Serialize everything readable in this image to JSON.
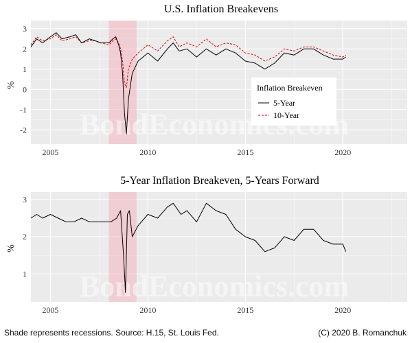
{
  "chart_data": [
    {
      "type": "line",
      "title": "U.S. Inflation Breakevens",
      "xlabel": "",
      "ylabel": "%",
      "xlim": [
        2004.0,
        2023.3
      ],
      "ylim": [
        -2.7,
        3.4
      ],
      "yticks": [
        3,
        2,
        1,
        0,
        -1,
        -2
      ],
      "xticks": [
        2005,
        2010,
        2015,
        2020
      ],
      "grid": true,
      "recession": [
        2008.0,
        2009.42
      ],
      "legend": {
        "title": "Inflation Breakeven",
        "placement": "center-right"
      },
      "series": [
        {
          "name": "5-Year",
          "color": "#000000",
          "x": [
            2004.0,
            2004.3,
            2004.6,
            2005.0,
            2005.3,
            2005.6,
            2006.0,
            2006.3,
            2006.6,
            2007.0,
            2007.3,
            2007.6,
            2008.0,
            2008.2,
            2008.35,
            2008.5,
            2008.6,
            2008.7,
            2008.8,
            2008.9,
            2009.0,
            2009.2,
            2009.5,
            2010.0,
            2010.5,
            2011.0,
            2011.3,
            2011.6,
            2012.0,
            2012.5,
            2013.0,
            2013.5,
            2014.0,
            2014.5,
            2015.0,
            2015.5,
            2016.0,
            2016.5,
            2017.0,
            2017.5,
            2018.0,
            2018.5,
            2019.0,
            2019.5,
            2020.0,
            2020.15
          ],
          "values": [
            2.1,
            2.5,
            2.3,
            2.6,
            2.8,
            2.5,
            2.6,
            2.7,
            2.3,
            2.5,
            2.4,
            2.3,
            2.3,
            2.5,
            2.6,
            2.2,
            1.8,
            0.8,
            -1.2,
            -2.2,
            -0.5,
            0.8,
            1.4,
            1.8,
            1.4,
            2.0,
            2.3,
            1.9,
            2.0,
            1.6,
            2.0,
            1.7,
            2.0,
            1.8,
            1.4,
            1.3,
            1.0,
            1.3,
            1.8,
            1.7,
            2.0,
            2.0,
            1.7,
            1.5,
            1.5,
            1.6
          ]
        },
        {
          "name": "10-Year",
          "color": "#e00000",
          "x": [
            2004.0,
            2004.3,
            2004.6,
            2005.0,
            2005.3,
            2005.6,
            2006.0,
            2006.3,
            2006.6,
            2007.0,
            2007.3,
            2007.6,
            2008.0,
            2008.2,
            2008.35,
            2008.5,
            2008.6,
            2008.7,
            2008.8,
            2008.9,
            2009.0,
            2009.2,
            2009.5,
            2010.0,
            2010.5,
            2011.0,
            2011.3,
            2011.6,
            2012.0,
            2012.5,
            2013.0,
            2013.5,
            2014.0,
            2014.5,
            2015.0,
            2015.5,
            2016.0,
            2016.5,
            2017.0,
            2017.5,
            2018.0,
            2018.5,
            2019.0,
            2019.5,
            2020.0,
            2020.15
          ],
          "values": [
            2.2,
            2.6,
            2.4,
            2.5,
            2.7,
            2.4,
            2.5,
            2.6,
            2.3,
            2.4,
            2.4,
            2.3,
            2.2,
            2.4,
            2.5,
            2.3,
            2.0,
            1.4,
            0.3,
            0.1,
            1.0,
            1.5,
            1.8,
            2.2,
            1.9,
            2.4,
            2.6,
            2.1,
            2.3,
            2.1,
            2.5,
            2.1,
            2.3,
            2.2,
            1.8,
            1.7,
            1.4,
            1.6,
            2.0,
            1.9,
            2.1,
            2.1,
            1.9,
            1.7,
            1.6,
            1.7
          ]
        }
      ]
    },
    {
      "type": "line",
      "title": "5-Year Inflation Breakeven, 5-Years Forward",
      "xlabel": "",
      "ylabel": "%",
      "xlim": [
        2004.0,
        2023.3
      ],
      "ylim": [
        0.25,
        3.2
      ],
      "yticks": [
        3,
        2,
        1
      ],
      "xticks": [
        2005,
        2010,
        2015,
        2020
      ],
      "grid": true,
      "recession": [
        2008.0,
        2009.42
      ],
      "series": [
        {
          "name": "",
          "color": "#000000",
          "x": [
            2004.0,
            2004.3,
            2004.6,
            2005.0,
            2005.4,
            2005.8,
            2006.2,
            2006.6,
            2007.0,
            2007.4,
            2007.8,
            2008.1,
            2008.4,
            2008.6,
            2008.75,
            2008.85,
            2008.95,
            2009.05,
            2009.2,
            2009.5,
            2010.0,
            2010.5,
            2011.0,
            2011.3,
            2011.7,
            2012.0,
            2012.5,
            2013.0,
            2013.5,
            2014.0,
            2014.5,
            2015.0,
            2015.5,
            2016.0,
            2016.5,
            2017.0,
            2017.5,
            2018.0,
            2018.5,
            2019.0,
            2019.5,
            2020.0,
            2020.15
          ],
          "values": [
            2.5,
            2.6,
            2.5,
            2.6,
            2.5,
            2.4,
            2.4,
            2.5,
            2.4,
            2.4,
            2.4,
            2.4,
            2.5,
            2.7,
            1.5,
            0.5,
            2.6,
            2.7,
            2.0,
            2.3,
            2.6,
            2.5,
            2.8,
            2.9,
            2.6,
            2.7,
            2.4,
            2.9,
            2.7,
            2.6,
            2.2,
            2.0,
            1.9,
            1.6,
            1.7,
            2.0,
            1.9,
            2.2,
            2.2,
            1.9,
            1.8,
            1.8,
            1.6
          ]
        }
      ]
    }
  ],
  "watermark": "BondEconomics.com",
  "footer": {
    "left": "Shade represents recessions. Source: H.15, St. Louis Fed.",
    "right": "(C) 2020 B. Romanchuk"
  }
}
